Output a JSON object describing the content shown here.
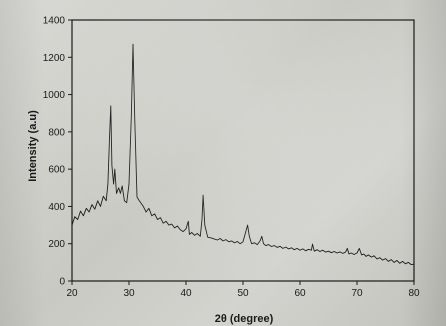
{
  "chart_data": {
    "type": "line",
    "title": "",
    "xlabel": "2θ (degree)",
    "ylabel": "Intensity (a.u)",
    "xlim": [
      20,
      80
    ],
    "ylim": [
      0,
      1400
    ],
    "x_ticks": [
      20,
      30,
      40,
      50,
      60,
      70,
      80
    ],
    "y_ticks": [
      0,
      200,
      400,
      600,
      800,
      1000,
      1200,
      1400
    ],
    "grid": false,
    "legend": "none",
    "line_color": "#1a1a1a",
    "series": [
      {
        "points": [
          [
            20.0,
            300
          ],
          [
            20.5,
            345
          ],
          [
            21.0,
            330
          ],
          [
            21.5,
            375
          ],
          [
            22.0,
            350
          ],
          [
            22.5,
            390
          ],
          [
            23.0,
            370
          ],
          [
            23.5,
            410
          ],
          [
            24.0,
            385
          ],
          [
            24.5,
            430
          ],
          [
            25.0,
            400
          ],
          [
            25.5,
            455
          ],
          [
            26.0,
            430
          ],
          [
            26.3,
            520
          ],
          [
            26.6,
            780
          ],
          [
            26.8,
            940
          ],
          [
            27.0,
            620
          ],
          [
            27.3,
            520
          ],
          [
            27.5,
            600
          ],
          [
            27.8,
            470
          ],
          [
            28.2,
            500
          ],
          [
            28.5,
            470
          ],
          [
            28.8,
            510
          ],
          [
            29.2,
            430
          ],
          [
            29.6,
            420
          ],
          [
            30.0,
            520
          ],
          [
            30.4,
            880
          ],
          [
            30.7,
            1270
          ],
          [
            31.0,
            880
          ],
          [
            31.4,
            450
          ],
          [
            31.8,
            430
          ],
          [
            32.5,
            400
          ],
          [
            33.0,
            370
          ],
          [
            33.5,
            390
          ],
          [
            34.0,
            350
          ],
          [
            34.5,
            360
          ],
          [
            35.0,
            330
          ],
          [
            35.5,
            340
          ],
          [
            36.0,
            310
          ],
          [
            36.5,
            320
          ],
          [
            37.0,
            300
          ],
          [
            37.5,
            305
          ],
          [
            38.0,
            285
          ],
          [
            38.5,
            295
          ],
          [
            39.0,
            275
          ],
          [
            39.5,
            265
          ],
          [
            40.0,
            280
          ],
          [
            40.4,
            320
          ],
          [
            40.6,
            250
          ],
          [
            41.0,
            260
          ],
          [
            41.5,
            245
          ],
          [
            42.0,
            255
          ],
          [
            42.5,
            240
          ],
          [
            42.8,
            330
          ],
          [
            43.0,
            460
          ],
          [
            43.3,
            300
          ],
          [
            43.8,
            235
          ],
          [
            44.5,
            230
          ],
          [
            45.0,
            225
          ],
          [
            45.5,
            220
          ],
          [
            46.0,
            228
          ],
          [
            46.5,
            215
          ],
          [
            47.0,
            222
          ],
          [
            47.5,
            210
          ],
          [
            48.0,
            215
          ],
          [
            48.5,
            205
          ],
          [
            49.0,
            212
          ],
          [
            49.5,
            200
          ],
          [
            50.0,
            210
          ],
          [
            50.5,
            265
          ],
          [
            50.8,
            300
          ],
          [
            51.1,
            240
          ],
          [
            51.5,
            200
          ],
          [
            52.0,
            205
          ],
          [
            52.5,
            195
          ],
          [
            53.0,
            215
          ],
          [
            53.3,
            240
          ],
          [
            53.6,
            200
          ],
          [
            54.0,
            190
          ],
          [
            54.5,
            195
          ],
          [
            55.0,
            185
          ],
          [
            55.5,
            190
          ],
          [
            56.0,
            180
          ],
          [
            56.5,
            186
          ],
          [
            57.0,
            175
          ],
          [
            57.5,
            182
          ],
          [
            58.0,
            172
          ],
          [
            58.5,
            178
          ],
          [
            59.0,
            168
          ],
          [
            59.5,
            175
          ],
          [
            60.0,
            165
          ],
          [
            60.5,
            172
          ],
          [
            61.0,
            162
          ],
          [
            61.5,
            170
          ],
          [
            62.0,
            165
          ],
          [
            62.2,
            198
          ],
          [
            62.5,
            160
          ],
          [
            63.0,
            168
          ],
          [
            63.5,
            158
          ],
          [
            64.0,
            165
          ],
          [
            64.5,
            155
          ],
          [
            65.0,
            160
          ],
          [
            65.5,
            152
          ],
          [
            66.0,
            158
          ],
          [
            66.5,
            150
          ],
          [
            67.0,
            156
          ],
          [
            67.5,
            148
          ],
          [
            68.0,
            155
          ],
          [
            68.3,
            175
          ],
          [
            68.6,
            145
          ],
          [
            69.0,
            150
          ],
          [
            69.5,
            142
          ],
          [
            70.0,
            150
          ],
          [
            70.4,
            175
          ],
          [
            70.8,
            140
          ],
          [
            71.2,
            145
          ],
          [
            71.6,
            132
          ],
          [
            72.0,
            140
          ],
          [
            72.5,
            128
          ],
          [
            73.0,
            135
          ],
          [
            73.5,
            118
          ],
          [
            74.0,
            125
          ],
          [
            74.5,
            112
          ],
          [
            75.0,
            120
          ],
          [
            75.5,
            105
          ],
          [
            76.0,
            115
          ],
          [
            76.5,
            100
          ],
          [
            77.0,
            110
          ],
          [
            77.5,
            95
          ],
          [
            78.0,
            105
          ],
          [
            78.5,
            92
          ],
          [
            79.0,
            100
          ],
          [
            79.5,
            88
          ],
          [
            80.0,
            90
          ]
        ]
      }
    ]
  }
}
